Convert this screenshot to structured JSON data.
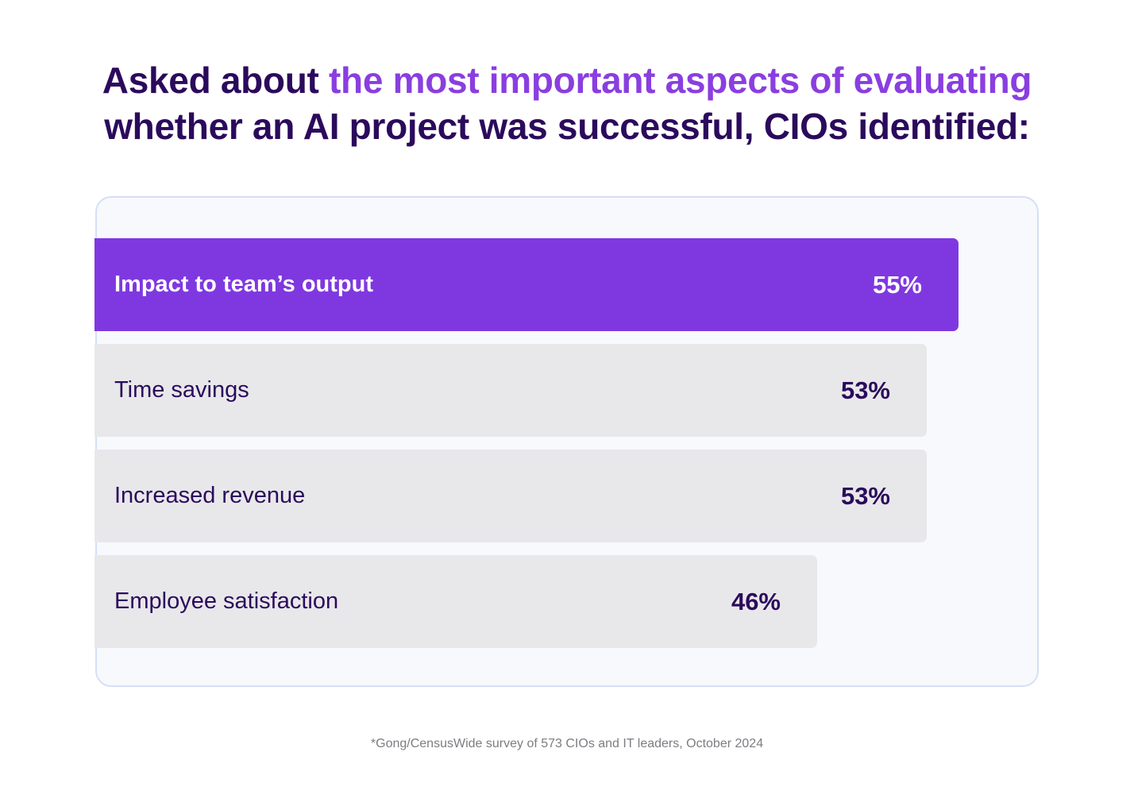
{
  "headline": {
    "part1": "Asked about ",
    "highlight": "the most important aspects of evaluating",
    "part2": "whether an AI project was successful, CIOs identified:"
  },
  "colors": {
    "title_dark": "#2b0a5c",
    "title_highlight": "#8a3ee0",
    "bar_primary": "#7f38e0",
    "bar_secondary": "#e8e8ea",
    "panel_bg": "#f8f9fd",
    "panel_border": "#d4e0f7"
  },
  "chart_data": {
    "type": "bar",
    "orientation": "horizontal",
    "categories": [
      "Impact to team’s output",
      "Time savings",
      "Increased revenue",
      "Employee satisfaction"
    ],
    "values": [
      55,
      53,
      53,
      46
    ],
    "value_labels": [
      "55%",
      "53%",
      "53%",
      "46%"
    ],
    "unit": "%",
    "highlighted_index": 0,
    "title": "",
    "xlabel": "",
    "ylabel": ""
  },
  "footnote": "*Gong/CensusWide survey of 573 CIOs and IT leaders, October 2024"
}
